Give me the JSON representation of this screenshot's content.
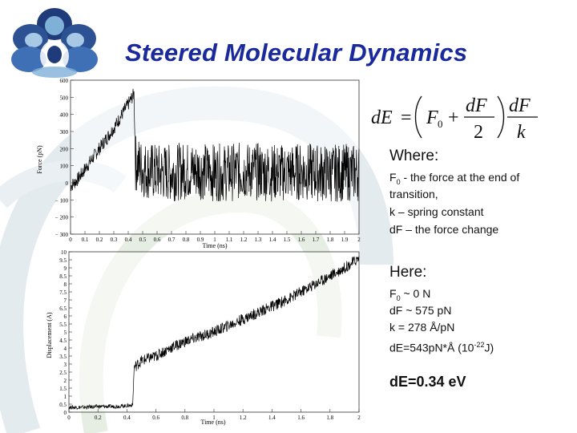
{
  "title": "Steered Molecular Dynamics",
  "formula": {
    "lhs": "dE",
    "eq": "=",
    "f0": "F",
    "f0_sub": "0",
    "plus": "+",
    "num1": "dF",
    "den1": "2",
    "num2": "dF",
    "den2": "k"
  },
  "where": {
    "heading": "Where:",
    "l1_pre": "F",
    "l1_sub": "0",
    "l1_post": " - the force at the end of",
    "l2": "transition,",
    "l3": "k – spring constant",
    "l4": "dF – the force change"
  },
  "here": {
    "heading": "Here:",
    "l1_pre": "F",
    "l1_sub": "0",
    "l1_post": " ~ 0 N",
    "l2": "dF ~ 575 pN",
    "l3": "k = 278 Å/pN",
    "l4_pre": "dE=543pN*Å (10",
    "l4_sup": "-22",
    "l4_post": "J)"
  },
  "result": "dE=0.34 eV",
  "colors": {
    "title": "#1a2a9c",
    "logo_dark": "#1f3b7a",
    "logo_mid": "#3f6fb4",
    "logo_light": "#7fb0d8",
    "swirl": "#dfe8ec",
    "swirl_green": "#e3eedf"
  },
  "chart_data": [
    {
      "type": "line",
      "xlabel": "Time (ns)",
      "ylabel": "Force (pN)",
      "xlim": [
        0,
        2
      ],
      "ylim": [
        -300,
        600
      ],
      "xticks": [
        "0",
        "0.1",
        "0.2",
        "0.3",
        "0.4",
        "0.5",
        "0.6",
        "0.7",
        "0.8",
        "0.9",
        "1",
        "1.1",
        "1.2",
        "1.3",
        "1.4",
        "1.5",
        "1.6",
        "1.7",
        "1.8",
        "1.9",
        "2"
      ],
      "yticks": [
        "600",
        "500",
        "400",
        "300",
        "200",
        "100",
        "0",
        "− 100",
        "− 200",
        "− 300"
      ],
      "trend": {
        "x": [
          0,
          0.05,
          0.1,
          0.15,
          0.2,
          0.25,
          0.3,
          0.35,
          0.4,
          0.44,
          0.45,
          0.5,
          0.6,
          0.7,
          0.8,
          0.9,
          1.0,
          1.1,
          1.2,
          1.3,
          1.4,
          1.5,
          1.6,
          1.7,
          1.8,
          1.9,
          2.0
        ],
        "y": [
          -20,
          20,
          80,
          140,
          200,
          260,
          320,
          390,
          460,
          520,
          120,
          80,
          60,
          60,
          70,
          70,
          60,
          60,
          70,
          65,
          60,
          60,
          65,
          60,
          55,
          60,
          60
        ]
      }
    },
    {
      "type": "line",
      "xlabel": "Time (ns)",
      "ylabel": "Displacement (A)",
      "xlim": [
        0,
        2
      ],
      "ylim": [
        0,
        10
      ],
      "xticks": [
        "0",
        "0.2",
        "0.4",
        "0.6",
        "0.8",
        "1",
        "1.2",
        "1.4",
        "1.6",
        "1.8",
        "2"
      ],
      "yticks": [
        "10",
        "9.5",
        "9",
        "8.5",
        "8",
        "7.5",
        "7",
        "6.5",
        "6",
        "5.5",
        "5",
        "4.5",
        "4",
        "3.5",
        "3",
        "2.5",
        "2",
        "1.5",
        "1",
        "0.5",
        "0"
      ],
      "trend": {
        "x": [
          0,
          0.1,
          0.2,
          0.3,
          0.4,
          0.44,
          0.45,
          0.5,
          0.6,
          0.7,
          0.8,
          0.9,
          1.0,
          1.1,
          1.2,
          1.3,
          1.4,
          1.5,
          1.6,
          1.7,
          1.8,
          1.9,
          2.0
        ],
        "y": [
          0.3,
          0.3,
          0.35,
          0.35,
          0.4,
          0.45,
          2.8,
          3.2,
          3.5,
          4.0,
          4.4,
          4.7,
          5.0,
          5.4,
          5.8,
          6.2,
          6.6,
          7.0,
          7.5,
          8.0,
          8.5,
          9.0,
          9.6
        ]
      }
    }
  ]
}
